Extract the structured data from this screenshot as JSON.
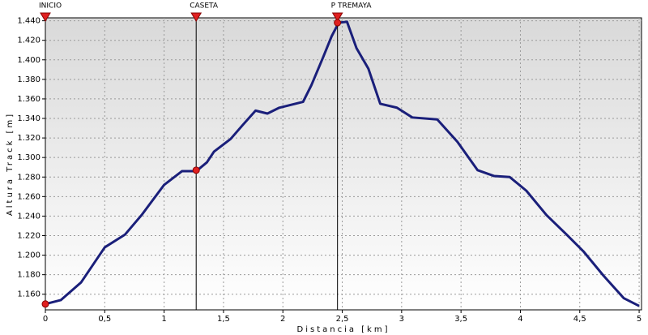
{
  "chart_data": {
    "type": "line",
    "xlabel": "Distancia [km]",
    "ylabel": "Altura Track [m]",
    "x": [
      0,
      0.13,
      0.3,
      0.5,
      0.67,
      0.81,
      1.0,
      1.15,
      1.27,
      1.36,
      1.42,
      1.56,
      1.66,
      1.77,
      1.87,
      1.97,
      2.07,
      2.17,
      2.24,
      2.34,
      2.41,
      2.47,
      2.54,
      2.62,
      2.72,
      2.82,
      2.96,
      3.09,
      3.3,
      3.47,
      3.64,
      3.78,
      3.91,
      4.05,
      4.22,
      4.39,
      4.53,
      4.7,
      4.87,
      5.0
    ],
    "series": [
      {
        "color": "#1a1f7a",
        "values": [
          1150,
          1154,
          1172,
          1208,
          1221,
          1241,
          1272,
          1286,
          1286,
          1295,
          1306,
          1319,
          1333,
          1348,
          1345,
          1351,
          1354,
          1357,
          1374,
          1403,
          1424,
          1438,
          1439,
          1412,
          1391,
          1355,
          1351,
          1341,
          1339,
          1316,
          1287,
          1281,
          1280,
          1266,
          1241,
          1221,
          1204,
          1179,
          1156,
          1148
        ]
      }
    ],
    "waypoints": [
      {
        "name": "INICIO",
        "x": 0,
        "y": 1150
      },
      {
        "name": "CASETA",
        "x": 1.27,
        "y": 1287
      },
      {
        "name": "P TREMAYA",
        "x": 2.46,
        "y": 1438
      }
    ],
    "waypoint_color": "#e02020",
    "xlim": [
      0,
      5.02
    ],
    "ylim": [
      1144,
      1443
    ],
    "xticks": [
      0,
      {
        "value": 0.5,
        "label": "0,5"
      },
      1,
      {
        "value": 1.5,
        "label": "1,5"
      },
      2,
      {
        "value": 2.5,
        "label": "2,5"
      },
      3,
      {
        "value": 3.5,
        "label": "3,5"
      },
      4,
      {
        "value": 4.5,
        "label": "4,5"
      },
      5
    ],
    "yticks": [
      {
        "value": 1160,
        "label": "1.160"
      },
      {
        "value": 1180,
        "label": "1.180"
      },
      {
        "value": 1200,
        "label": "1.200"
      },
      {
        "value": 1220,
        "label": "1.220"
      },
      {
        "value": 1240,
        "label": "1.240"
      },
      {
        "value": 1260,
        "label": "1.260"
      },
      {
        "value": 1280,
        "label": "1.280"
      },
      {
        "value": 1300,
        "label": "1.300"
      },
      {
        "value": 1320,
        "label": "1.320"
      },
      {
        "value": 1340,
        "label": "1.340"
      },
      {
        "value": 1360,
        "label": "1.360"
      },
      {
        "value": 1380,
        "label": "1.380"
      },
      {
        "value": 1400,
        "label": "1.400"
      },
      {
        "value": 1420,
        "label": "1.420"
      },
      {
        "value": 1440,
        "label": "1.440"
      }
    ],
    "grid": true
  }
}
